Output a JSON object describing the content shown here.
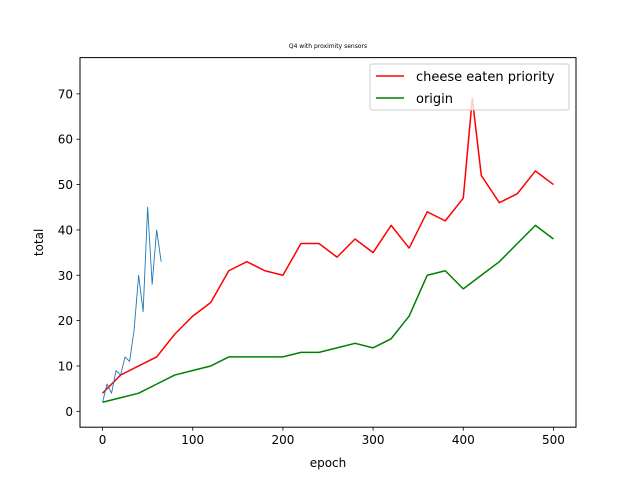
{
  "chart_data": {
    "type": "line",
    "title": "Q4 with proximity sensors",
    "xlabel": "epoch",
    "ylabel": "total",
    "xlim": [
      -25,
      525
    ],
    "ylim": [
      -3.5,
      78
    ],
    "xticks": [
      0,
      100,
      200,
      300,
      400,
      500
    ],
    "yticks": [
      0,
      10,
      20,
      30,
      40,
      50,
      60,
      70
    ],
    "grid": false,
    "legend_position": "top-right",
    "series": [
      {
        "name": "cheese eaten priority",
        "color": "#ff0000",
        "x": [
          0,
          20,
          40,
          60,
          80,
          100,
          120,
          140,
          160,
          180,
          200,
          220,
          240,
          260,
          280,
          300,
          320,
          340,
          360,
          380,
          400,
          410,
          420,
          440,
          460,
          480,
          500
        ],
        "y": [
          4,
          8,
          10,
          12,
          17,
          21,
          24,
          31,
          33,
          31,
          30,
          37,
          37,
          34,
          38,
          35,
          41,
          36,
          44,
          42,
          47,
          69,
          52,
          46,
          48,
          53,
          50
        ]
      },
      {
        "name": "origin",
        "color": "#008000",
        "x": [
          0,
          20,
          40,
          60,
          80,
          100,
          120,
          140,
          160,
          180,
          200,
          220,
          240,
          260,
          280,
          300,
          320,
          340,
          360,
          380,
          400,
          420,
          440,
          460,
          480,
          500
        ],
        "y": [
          2,
          3,
          4,
          6,
          8,
          9,
          10,
          12,
          12,
          12,
          12,
          13,
          13,
          14,
          15,
          14,
          16,
          21,
          30,
          31,
          27,
          30,
          33,
          37,
          41,
          38
        ]
      },
      {
        "color": "#1f77b4",
        "x": [
          0,
          5,
          10,
          15,
          20,
          25,
          30,
          35,
          40,
          45,
          50,
          55,
          60,
          65
        ],
        "y": [
          2,
          6,
          4,
          9,
          8,
          12,
          11,
          18,
          30,
          22,
          45,
          28,
          40,
          33
        ]
      }
    ]
  }
}
